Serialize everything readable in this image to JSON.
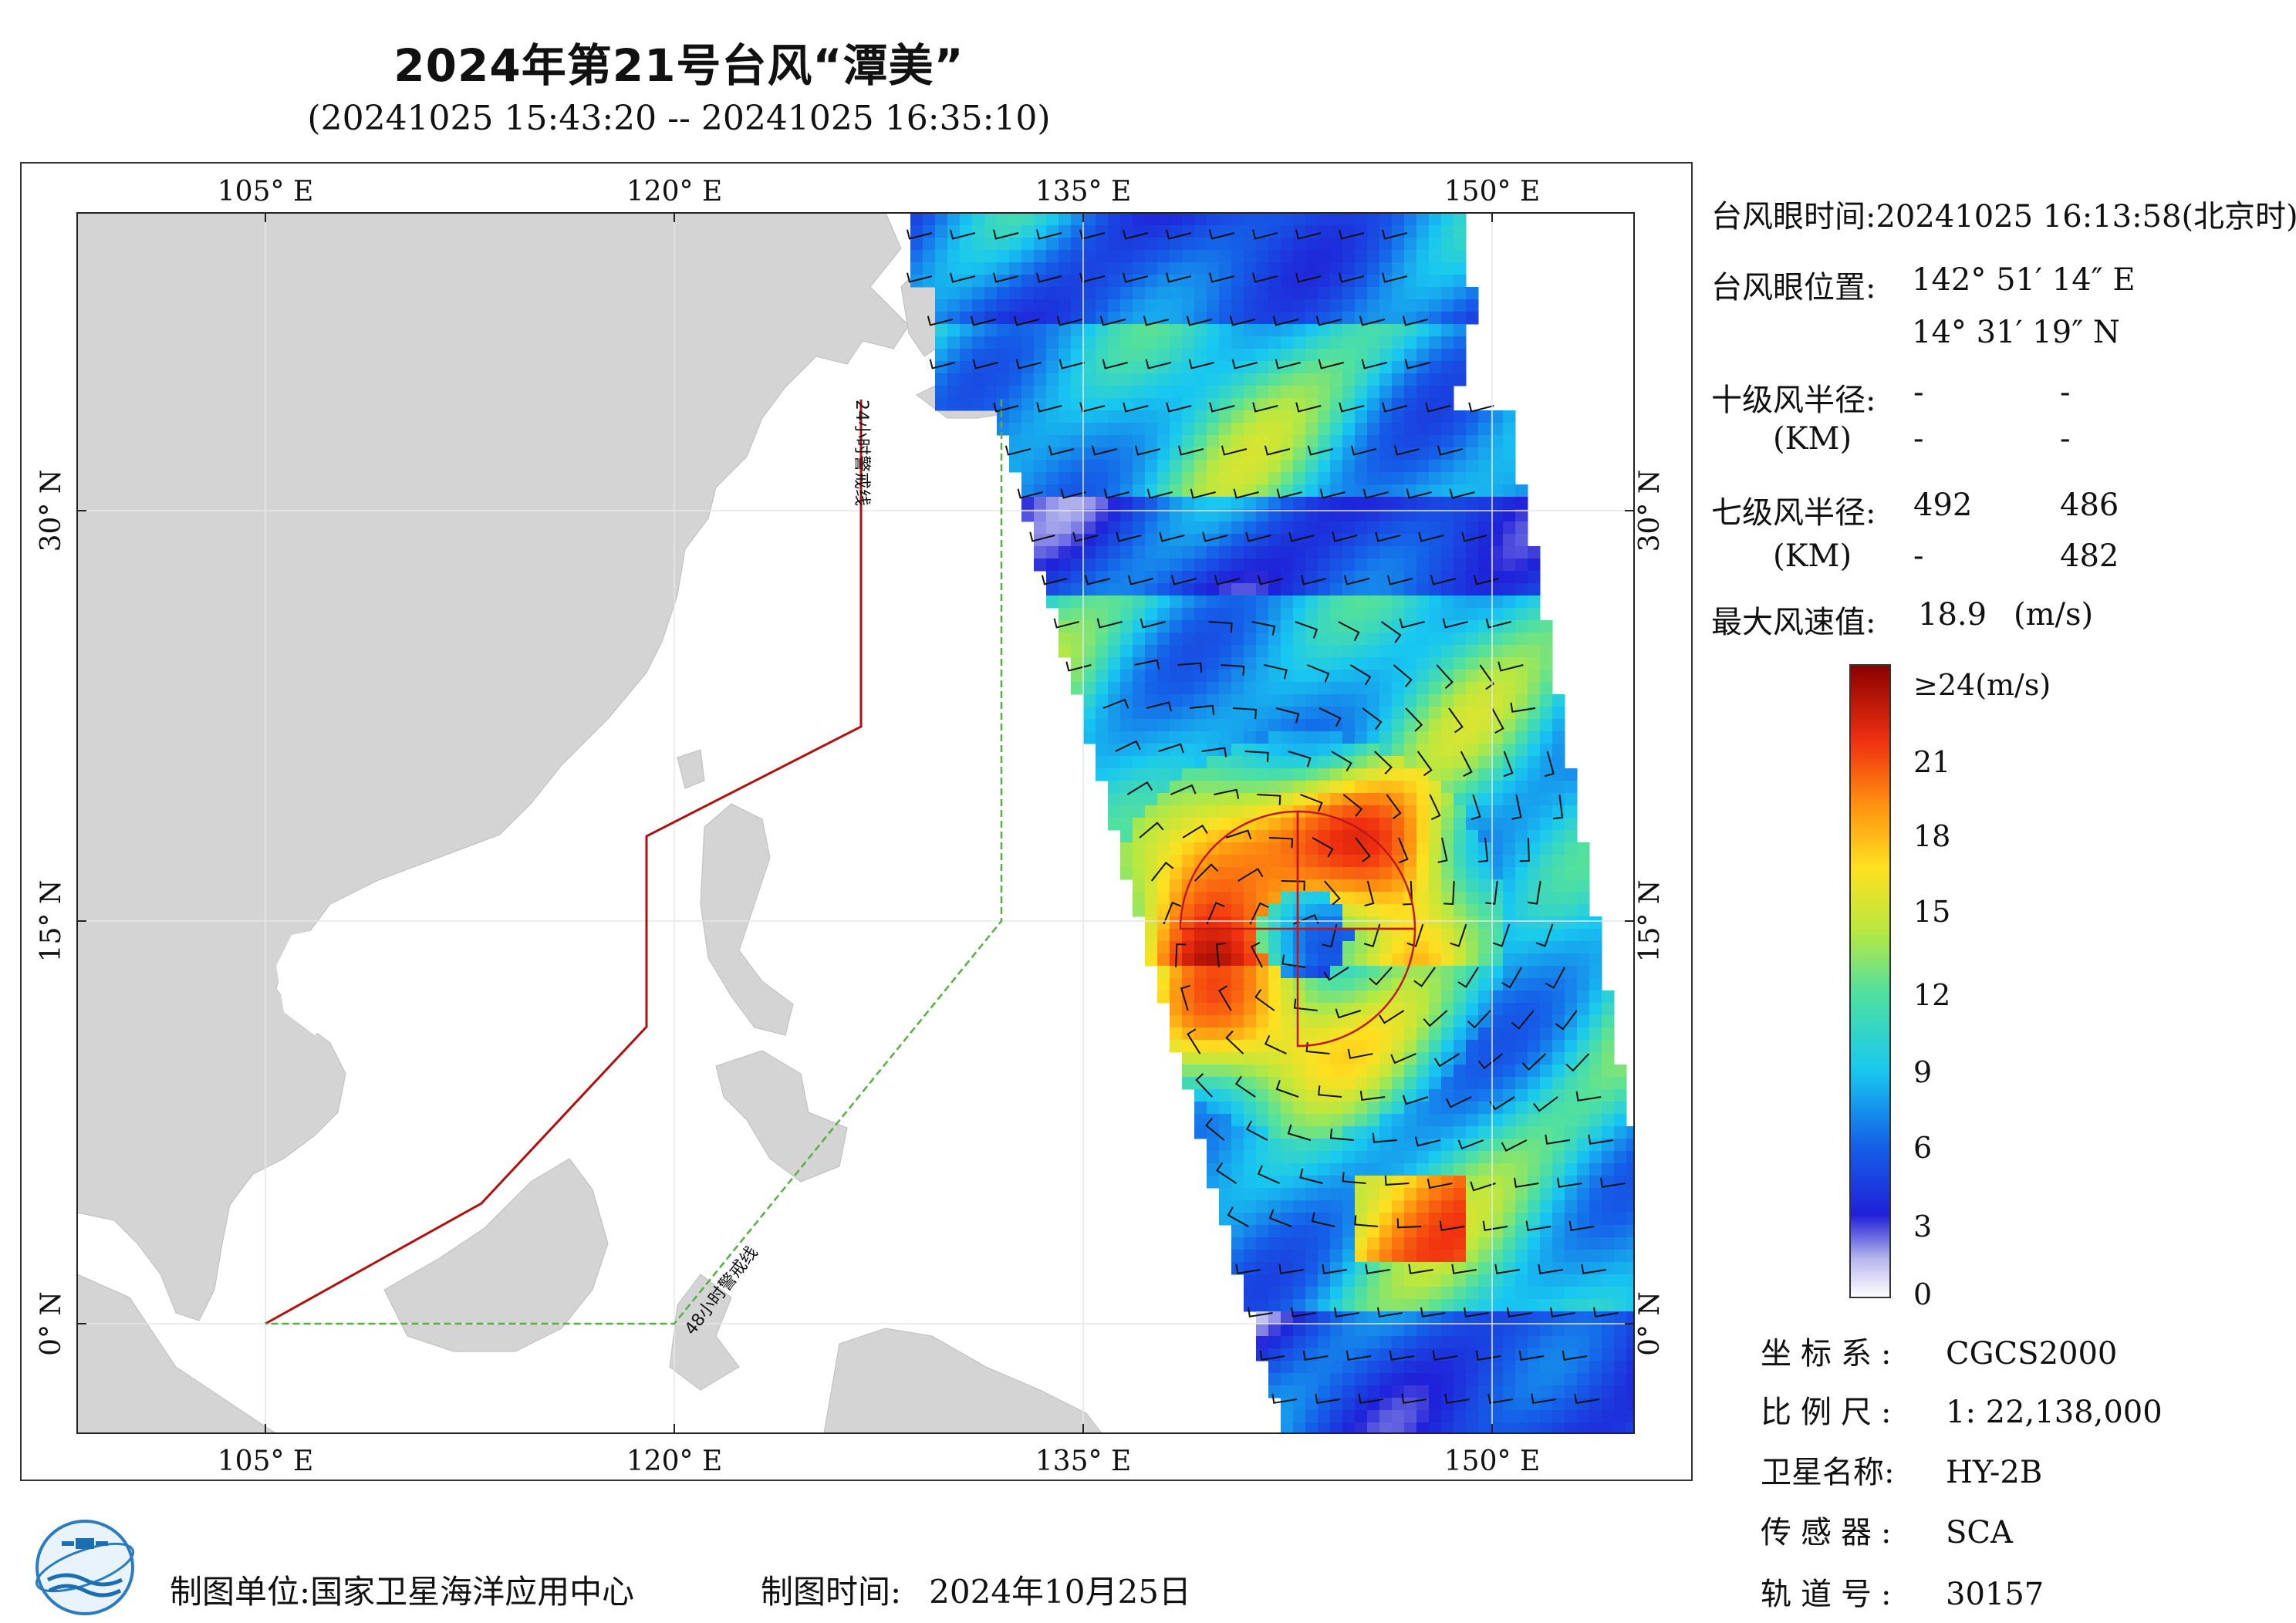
{
  "header": {
    "title": "2024年第21号台风“潭美”",
    "subtitle": "(20241025 15:43:20 -- 20241025 16:35:10)"
  },
  "map": {
    "lon_labels": [
      "105° E",
      "120° E",
      "135° E",
      "150° E"
    ],
    "lat_labels": [
      "30° N",
      "15° N",
      "0° N"
    ],
    "line_24h_label": "24小时警戒线",
    "line_48h_label": "48小时警戒线",
    "colors": {
      "land": "#d4d4d4",
      "sea": "#ffffff",
      "line_24h": "#b01010",
      "line_48h": "#55b040"
    }
  },
  "info": {
    "eye_time_label": "台风眼时间:",
    "eye_time_value": "20241025 16:13:58(北京时)",
    "eye_pos_label": "台风眼位置:",
    "eye_lon": "142° 51′ 14″ E",
    "eye_lat": "14° 31′ 19″ N",
    "r10_label": "十级风半径:",
    "r10_unit": "(KM)",
    "r10_values": [
      "-",
      "-",
      "-",
      "-"
    ],
    "r7_label": "七级风半径:",
    "r7_unit": "(KM)",
    "r7_values": [
      "492",
      "486",
      "-",
      "482"
    ],
    "max_wind_label": "最大风速值:",
    "max_wind_value": "18.9",
    "max_wind_unit": "(m/s)"
  },
  "colorbar": {
    "labels": [
      "≥24(m/s)",
      "21",
      "18",
      "15",
      "12",
      "9",
      "6",
      "3",
      "0"
    ]
  },
  "meta": {
    "coord_label": "坐标系:",
    "coord_value": "CGCS2000",
    "scale_label": "比例尺:",
    "scale_value": "1: 22,138,000",
    "satellite_label": "卫星名称:",
    "satellite_value": "HY-2B",
    "sensor_label": "传感器:",
    "sensor_value": "SCA",
    "orbit_label": "轨道号:",
    "orbit_value": "30157"
  },
  "footer": {
    "producer_label": "制图单位:",
    "producer_value": "国家卫星海洋应用中心",
    "date_label": "制图时间:",
    "date_value": "2024年10月25日"
  }
}
